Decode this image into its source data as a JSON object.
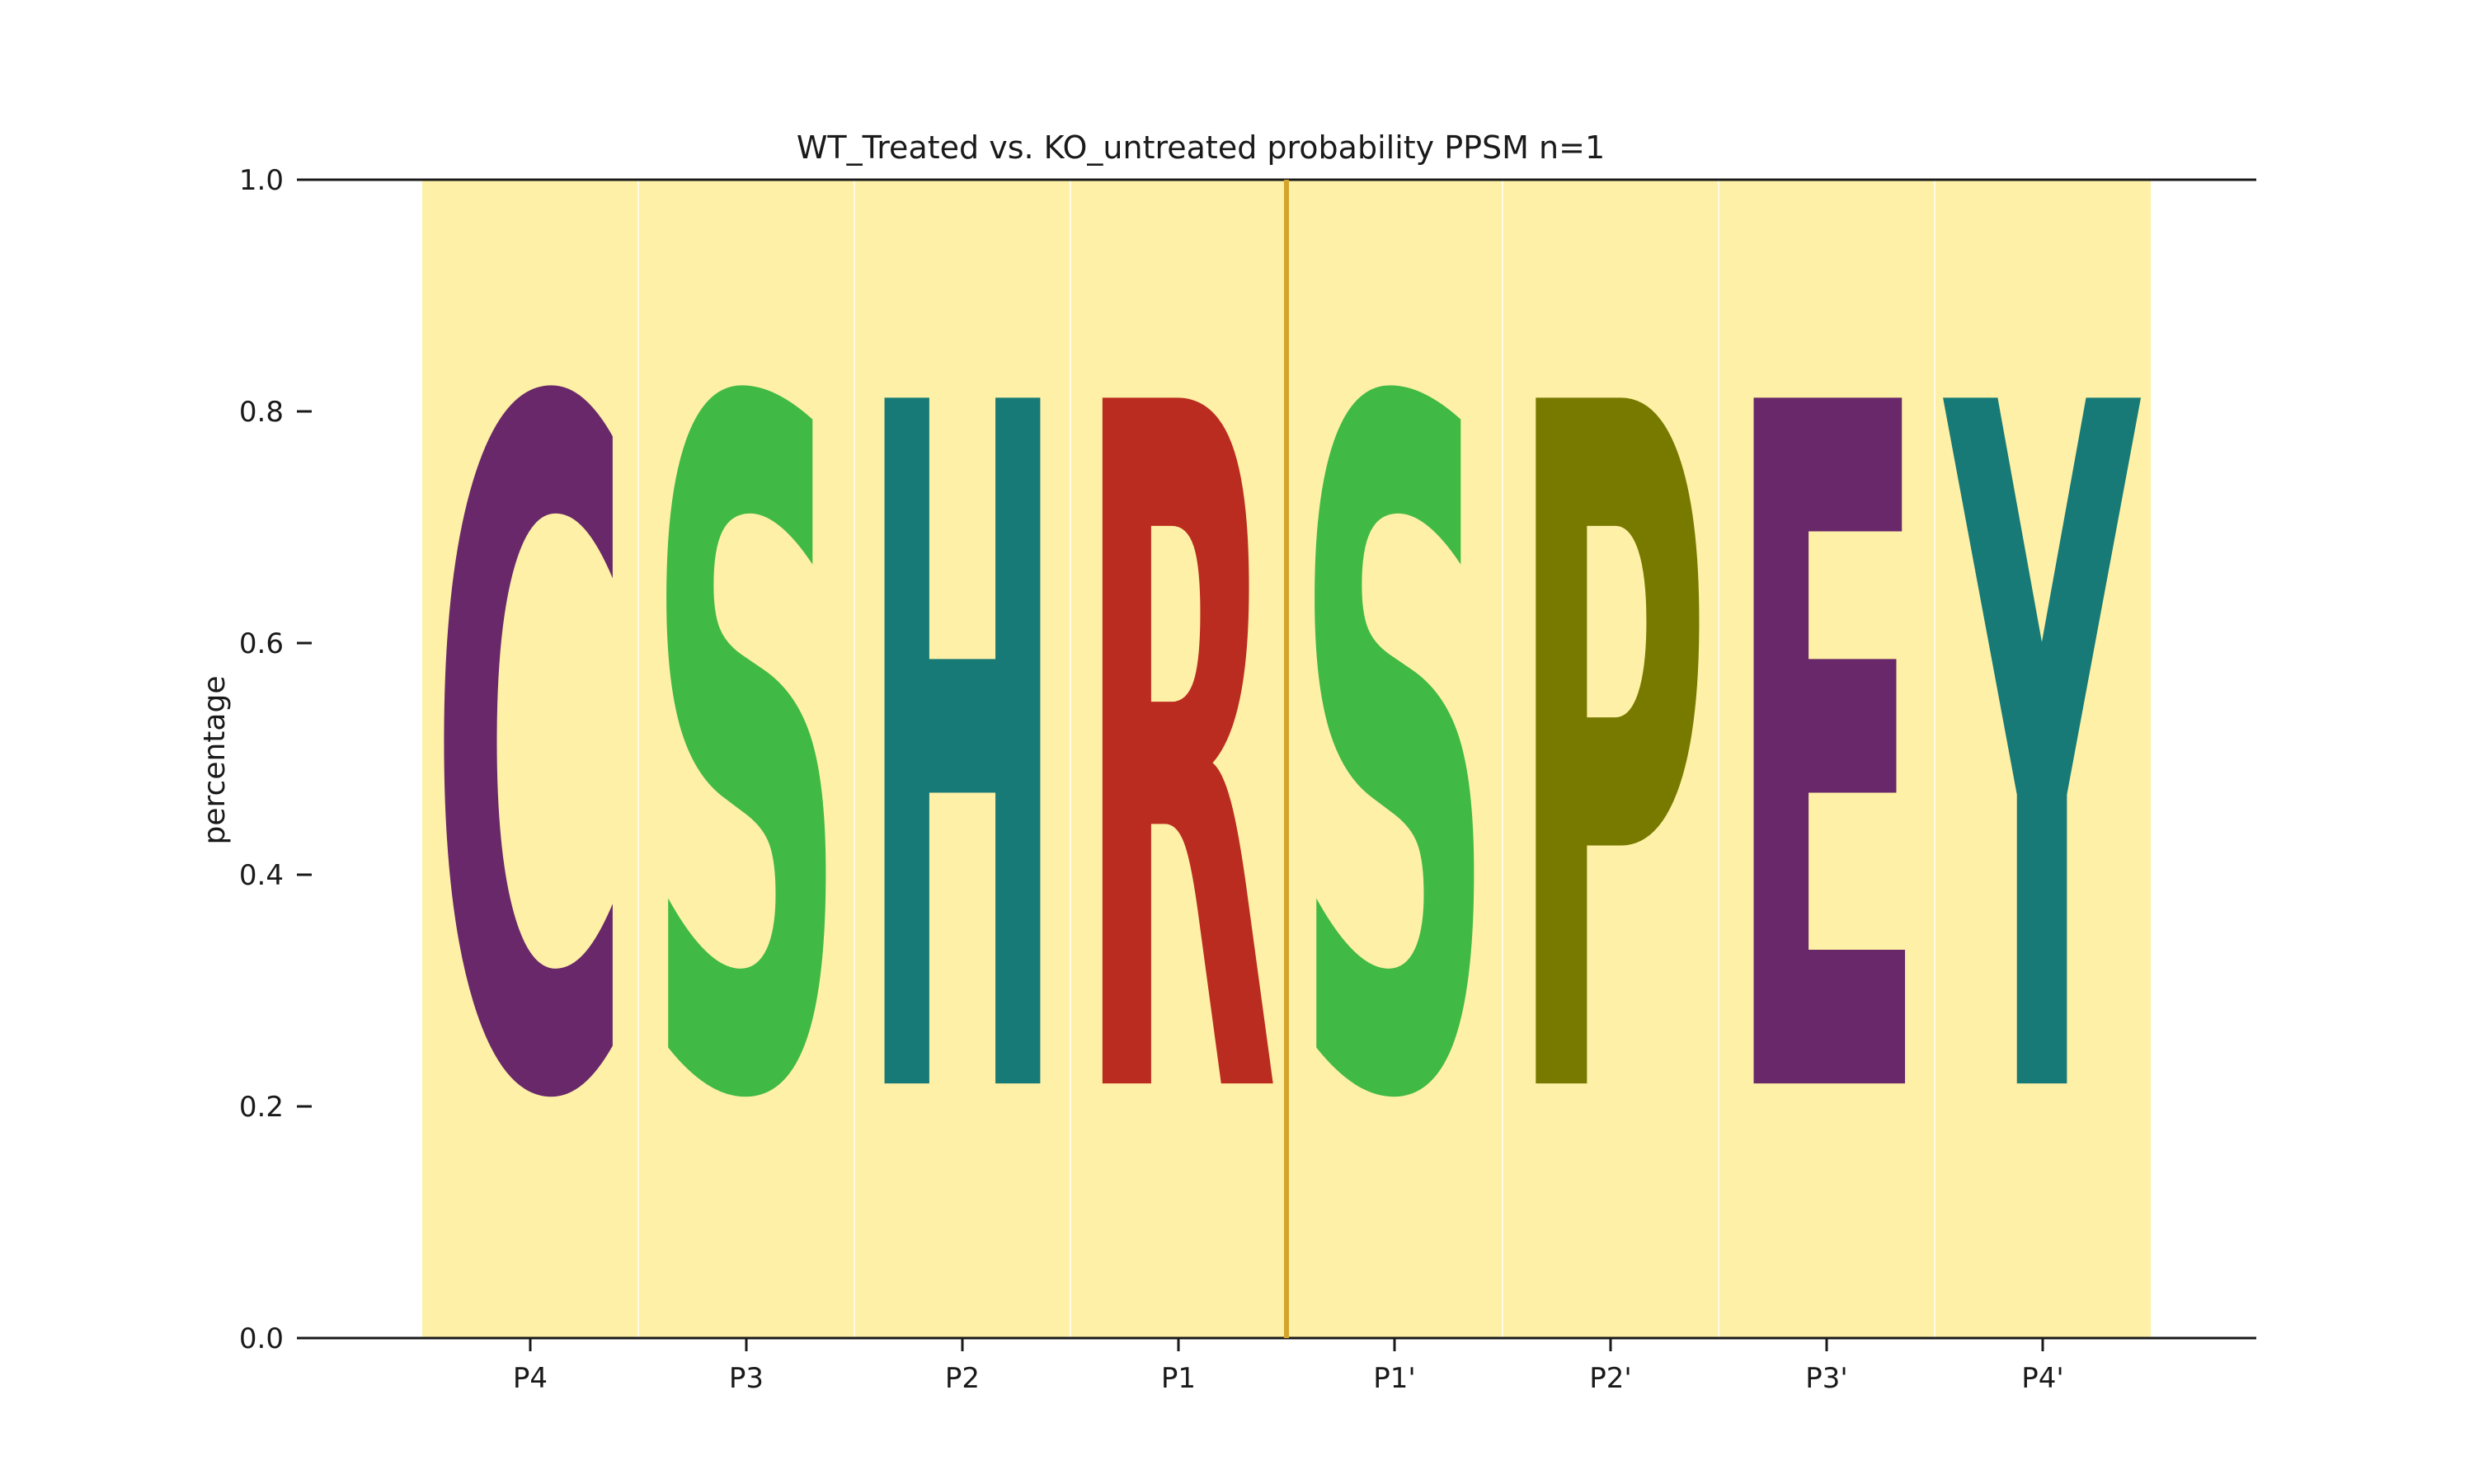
{
  "chart_data": {
    "type": "sequence-logo",
    "title": "WT_Treated vs. KO_untreated probability PPSM n=1",
    "xlabel": "",
    "ylabel": "percentage",
    "ylim": [
      0.0,
      1.0
    ],
    "yticks": [
      "0.0",
      "0.2",
      "0.4",
      "0.6",
      "0.8",
      "1.0"
    ],
    "positions": [
      "P4",
      "P3",
      "P2",
      "P1",
      "P1'",
      "P2'",
      "P3'",
      "P4'"
    ],
    "letters": [
      "C",
      "S",
      "H",
      "R",
      "S",
      "P",
      "E",
      "Y"
    ],
    "letter_colors": [
      "#68286a",
      "#40b945",
      "#177a76",
      "#bb2c20",
      "#40b945",
      "#787a00",
      "#68286a",
      "#177a76"
    ],
    "values": [
      1.0,
      1.0,
      1.0,
      1.0,
      1.0,
      1.0,
      1.0,
      1.0
    ],
    "highlight_color": "#fef0a6",
    "cleavage_site_after": "P1",
    "cleavage_line_color": "#d4a52b",
    "grid": false
  }
}
